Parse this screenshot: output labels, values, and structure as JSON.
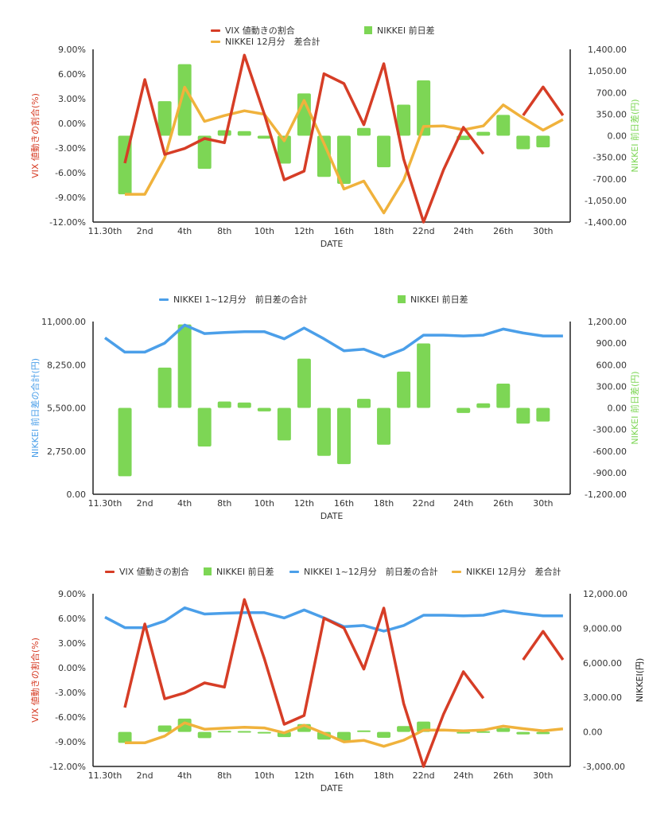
{
  "colors": {
    "vix": "#d63d26",
    "orange": "#f0b23c",
    "green": "#7dd655",
    "blue": "#4b9fe9",
    "axis": "#222222"
  },
  "x_tick_labels": [
    "11.30th",
    "2nd",
    "4th",
    "8th",
    "10th",
    "12th",
    "16th",
    "18th",
    "22nd",
    "24th",
    "26th",
    "30th"
  ],
  "chart_data": [
    {
      "type": "bar+line",
      "xlabel": "DATE",
      "ylabel_left": "VIX 値動きの割合(%)",
      "ylabel_right": "NIKKEI 前日差(円)",
      "ylim_left": [
        -12,
        9
      ],
      "ylim_right": [
        -1400,
        1400
      ],
      "yticks_left": [
        "9.00%",
        "6.00%",
        "3.00%",
        "0.00%",
        "-3.00%",
        "-6.00%",
        "-9.00%",
        "-12.00%"
      ],
      "yticks_right": [
        "1,400.00",
        "1,050.00",
        "700.00",
        "350.00",
        "0.00",
        "-350.00",
        "-700.00",
        "-1,050.00",
        "-1,400.00"
      ],
      "legend": [
        {
          "name": "VIX 値動きの割合",
          "kind": "line",
          "color": "#d63d26"
        },
        {
          "name": "NIKKEI 12月分　差合計",
          "kind": "line",
          "color": "#f0b23c"
        },
        {
          "name": "NIKKEI 前日差",
          "kind": "bar",
          "color": "#7dd655"
        }
      ],
      "series": [
        {
          "name": "NIKKEI 前日差",
          "kind": "bar",
          "axis": "right",
          "color": "#7dd655",
          "values": [
            null,
            -950,
            0,
            560,
            1160,
            -537,
            89,
            74,
            -48,
            -452,
            685,
            -667,
            -781,
            126,
            -511,
            504,
            896,
            0,
            -70,
            63,
            337,
            -219,
            -189,
            0
          ]
        },
        {
          "name": "NIKKEI 12月分　差合計",
          "kind": "line",
          "axis": "right",
          "color": "#f0b23c",
          "values": [
            null,
            -950,
            -950,
            -361,
            787,
            232,
            327,
            404,
            348,
            -82,
            572,
            -125,
            -864,
            -735,
            -1252,
            -720,
            150,
            159,
            95,
            159,
            500,
            286,
            90,
            262
          ]
        },
        {
          "name": "VIX 値動きの割合",
          "kind": "line",
          "axis": "left",
          "color": "#d63d26",
          "values": [
            null,
            -4.84,
            5.32,
            -3.77,
            -3.06,
            -1.84,
            -2.35,
            8.29,
            1.13,
            -6.87,
            -5.81,
            6.03,
            4.84,
            -0.16,
            7.26,
            -4.35,
            -12.0,
            -5.65,
            -0.48,
            -3.71,
            null,
            0.97,
            4.42,
            0.97
          ]
        }
      ]
    },
    {
      "type": "bar+line",
      "xlabel": "DATE",
      "ylabel_left": "NIKKEI 前日差の合計(円)",
      "ylabel_right": "NIKKEI 前日差(円)",
      "ylim_left": [
        0,
        11000
      ],
      "ylim_right": [
        -1200,
        1200
      ],
      "yticks_left": [
        "11,000.00",
        "8,250.00",
        "5,500.00",
        "2,750.00",
        "0.00"
      ],
      "yticks_right": [
        "1,200.00",
        "900.00",
        "600.00",
        "300.00",
        "0.00",
        "-300.00",
        "-600.00",
        "-900.00",
        "-1,200.00"
      ],
      "legend": [
        {
          "name": "NIKKEI 1~12月分　前日差の合計",
          "kind": "line",
          "color": "#4b9fe9"
        },
        {
          "name": "NIKKEI 前日差",
          "kind": "bar",
          "color": "#7dd655"
        }
      ],
      "series": [
        {
          "name": "NIKKEI 前日差",
          "kind": "bar",
          "axis": "right",
          "color": "#7dd655",
          "values": [
            null,
            -950,
            0,
            560,
            1160,
            -537,
            89,
            74,
            -48,
            -452,
            685,
            -667,
            -781,
            126,
            -511,
            504,
            896,
            0,
            -70,
            63,
            337,
            -219,
            -189,
            0
          ]
        },
        {
          "name": "NIKKEI 1~12月分　前日差の合計",
          "kind": "line",
          "axis": "left",
          "color": "#4b9fe9",
          "values": [
            9966,
            9054,
            9054,
            9628,
            10777,
            10236,
            10304,
            10355,
            10355,
            9899,
            10591,
            9899,
            9139,
            9240,
            8750,
            9240,
            10135,
            10135,
            10084,
            10135,
            10524,
            10270,
            10084,
            10084
          ]
        }
      ]
    },
    {
      "type": "bar+line",
      "xlabel": "DATE",
      "ylabel_left": "VIX 値動きの割合(%)",
      "ylabel_right": "NIKKEI(円)",
      "ylim_left": [
        -12,
        9
      ],
      "ylim_right": [
        -3000,
        12000
      ],
      "yticks_left": [
        "9.00%",
        "6.00%",
        "3.00%",
        "0.00%",
        "-3.00%",
        "-6.00%",
        "-9.00%",
        "-12.00%"
      ],
      "yticks_right": [
        "12,000.00",
        "9,000.00",
        "6,000.00",
        "3,000.00",
        "0.00",
        "-3,000.00"
      ],
      "legend": [
        {
          "name": "VIX 値動きの割合",
          "kind": "line",
          "color": "#d63d26"
        },
        {
          "name": "NIKKEI 前日差",
          "kind": "bar",
          "color": "#7dd655"
        },
        {
          "name": "NIKKEI 1~12月分　前日差の合計",
          "kind": "line",
          "color": "#4b9fe9"
        },
        {
          "name": "NIKKEI 12月分　差合計",
          "kind": "line",
          "color": "#f0b23c"
        }
      ],
      "series": [
        {
          "name": "NIKKEI 前日差",
          "kind": "bar",
          "axis": "right",
          "color": "#7dd655",
          "values": [
            null,
            -950,
            0,
            560,
            1160,
            -537,
            89,
            74,
            -48,
            -452,
            685,
            -667,
            -781,
            126,
            -511,
            504,
            896,
            0,
            -70,
            63,
            337,
            -219,
            -189,
            0
          ]
        },
        {
          "name": "NIKKEI 1~12月分　前日差の合計",
          "kind": "line",
          "axis": "right",
          "color": "#4b9fe9",
          "values": [
            9966,
            9054,
            9054,
            9628,
            10777,
            10236,
            10304,
            10355,
            10355,
            9899,
            10591,
            9899,
            9139,
            9240,
            8750,
            9240,
            10135,
            10135,
            10084,
            10135,
            10524,
            10270,
            10084,
            10084
          ]
        },
        {
          "name": "NIKKEI 12月分　差合計",
          "kind": "line",
          "axis": "right",
          "color": "#f0b23c",
          "values": [
            null,
            -950,
            -950,
            -361,
            787,
            232,
            327,
            404,
            348,
            -82,
            572,
            -125,
            -864,
            -735,
            -1252,
            -720,
            150,
            159,
            95,
            159,
            500,
            286,
            90,
            262
          ]
        },
        {
          "name": "VIX 値動きの割合",
          "kind": "line",
          "axis": "left",
          "color": "#d63d26",
          "values": [
            null,
            -4.84,
            5.32,
            -3.77,
            -3.06,
            -1.84,
            -2.35,
            8.29,
            1.13,
            -6.87,
            -5.81,
            6.03,
            4.84,
            -0.16,
            7.26,
            -4.35,
            -12.0,
            -5.65,
            -0.48,
            -3.71,
            null,
            0.97,
            4.42,
            0.97
          ]
        }
      ]
    }
  ]
}
